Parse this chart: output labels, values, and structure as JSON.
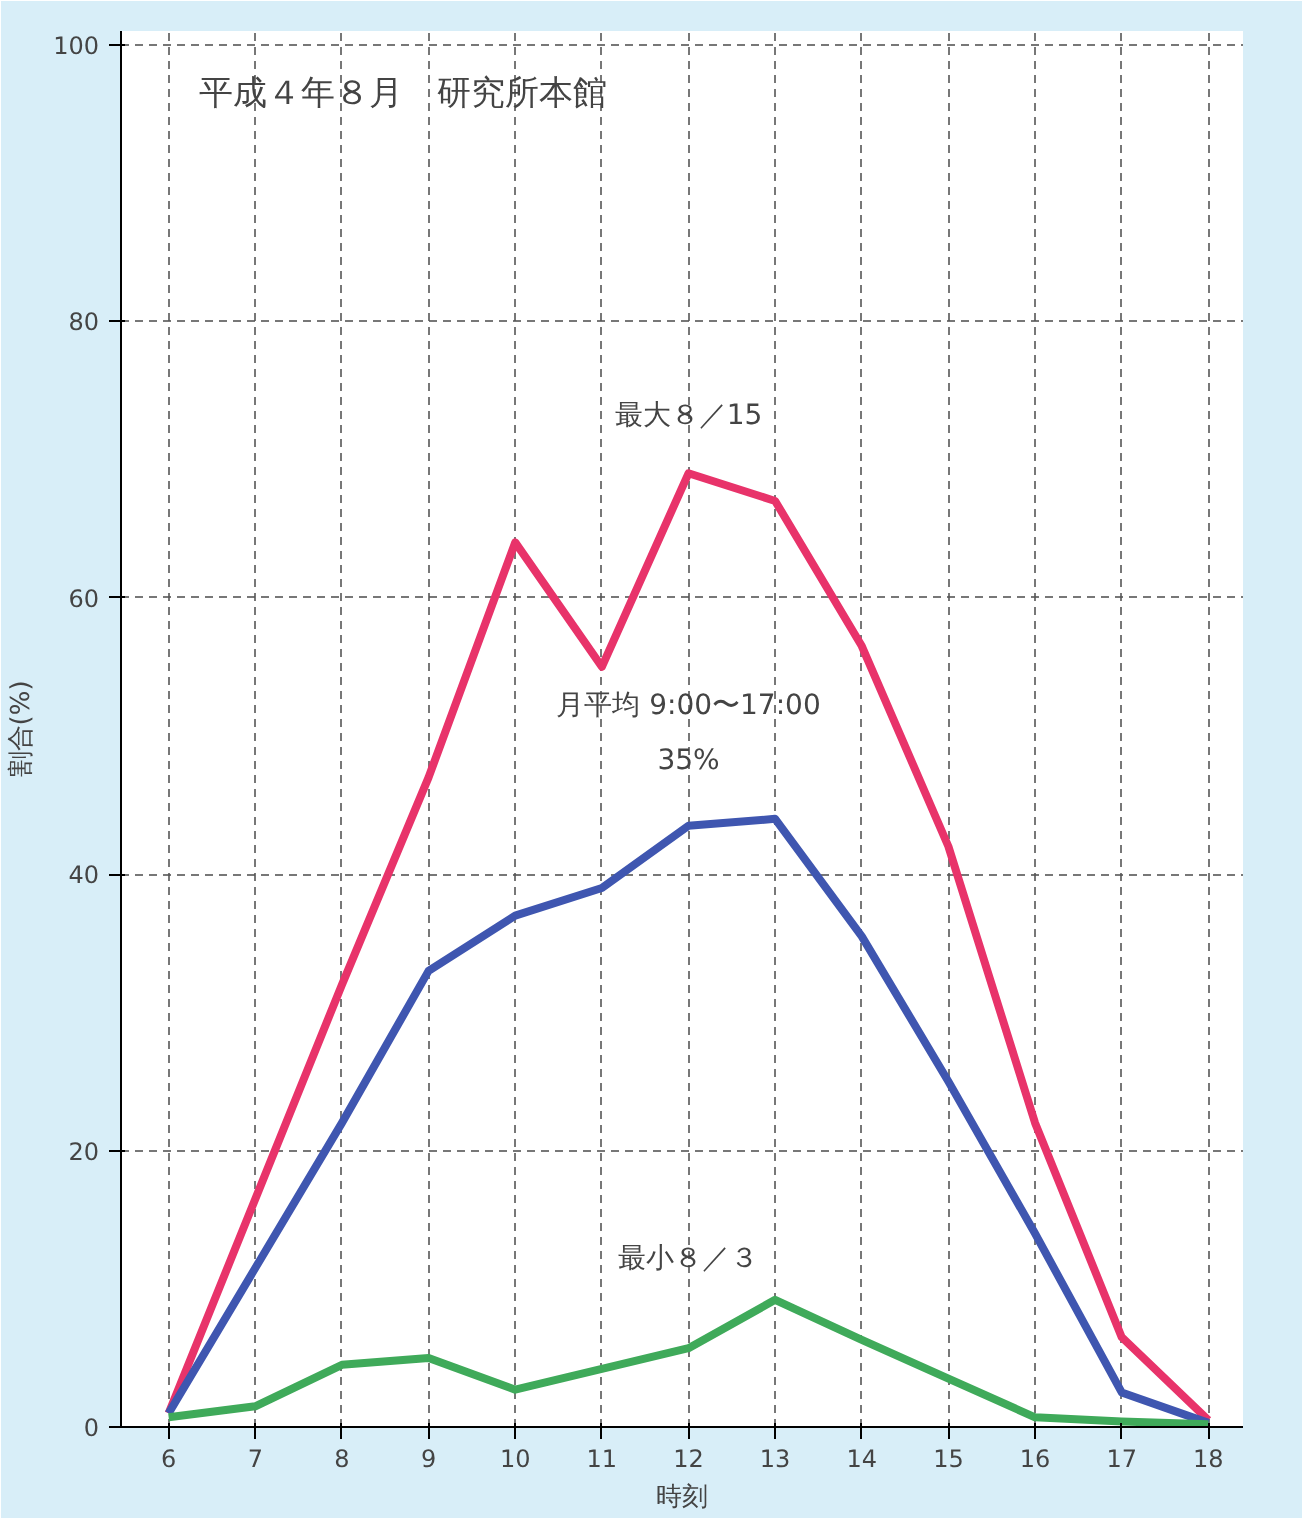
{
  "chart_data": {
    "type": "line",
    "title": "平成４年８月　研究所本館",
    "xlabel": "時刻",
    "ylabel": "割合(%)",
    "x": [
      6,
      7,
      8,
      9,
      10,
      11,
      12,
      13,
      14,
      15,
      16,
      17,
      18
    ],
    "series": [
      {
        "color": "#e8336a",
        "values": [
          1,
          16.5,
          32,
          47,
          64,
          55,
          69,
          67,
          56.5,
          42,
          22,
          6.5,
          0.5
        ]
      },
      {
        "color": "#3f56b0",
        "values": [
          1,
          11.5,
          22,
          33,
          37,
          39,
          43.5,
          44,
          35.5,
          25,
          14,
          2.5,
          0.3
        ]
      },
      {
        "color": "#3faa5a",
        "values": [
          0.7,
          1.5,
          4.5,
          5,
          2.7,
          4.2,
          5.7,
          9.2,
          6.3,
          3.5,
          0.7,
          0.4,
          0.2
        ]
      }
    ],
    "annotations": [
      "最大８／15",
      "月平均 9:00〜17:00",
      "35%",
      "最小８／３"
    ],
    "xlim": [
      5.45,
      18.4
    ],
    "ylim": [
      0,
      101
    ],
    "xticks": [
      6,
      7,
      8,
      9,
      10,
      11,
      12,
      13,
      14,
      15,
      16,
      17,
      18
    ],
    "yticks": [
      0,
      20,
      40,
      60,
      80,
      100
    ],
    "grid": true,
    "line_style": "solid"
  }
}
